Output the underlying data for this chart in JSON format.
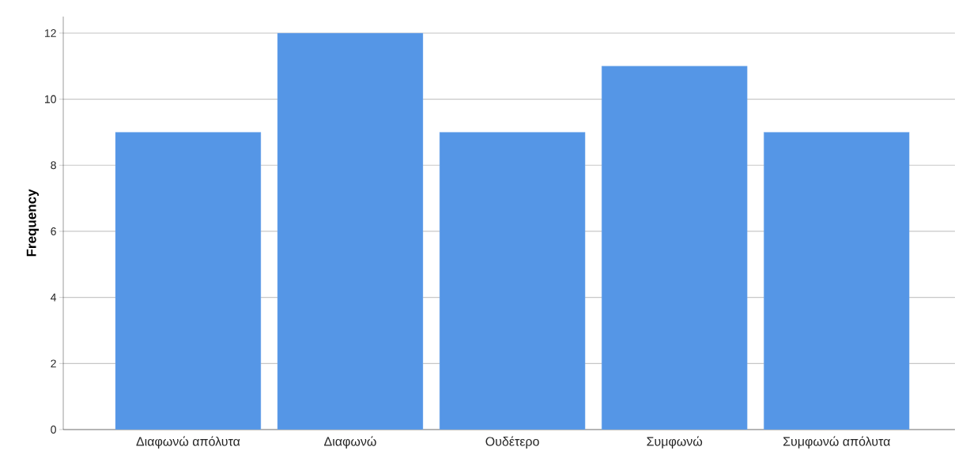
{
  "chart_data": {
    "type": "bar",
    "ylabel": "Frequency",
    "categories": [
      "Διαφωνώ απόλυτα",
      "Διαφωνώ",
      "Ουδέτερο",
      "Συμφωνώ",
      "Συμφωνώ απόλυτα"
    ],
    "values": [
      9,
      12,
      9,
      11,
      9
    ],
    "color": "#5596e6",
    "ylim": [
      0,
      12.5
    ],
    "yticks": [
      0,
      2,
      4,
      6,
      8,
      10,
      12
    ],
    "grid": "y"
  }
}
